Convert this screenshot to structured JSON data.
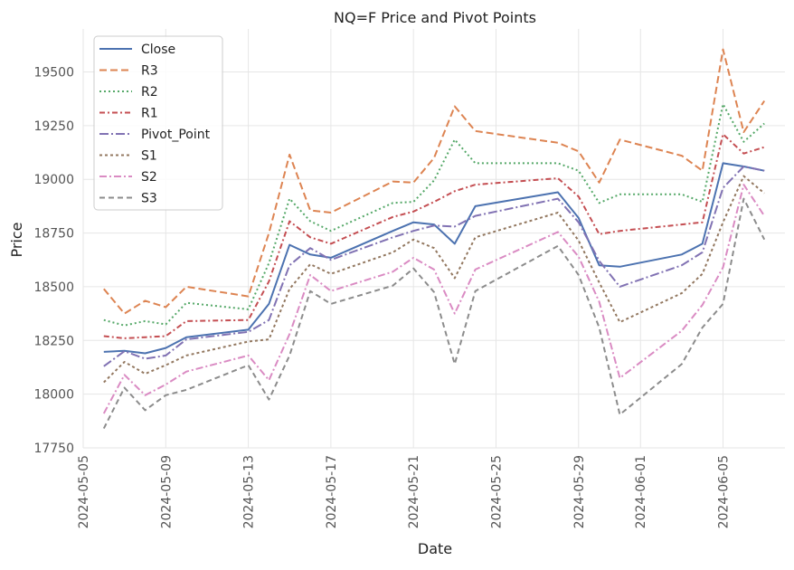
{
  "chart_data": {
    "type": "line",
    "title": "NQ=F Price and Pivot Points",
    "xlabel": "Date",
    "ylabel": "Price",
    "ylim": [
      17750,
      19700
    ],
    "xlim": [
      "2024-05-05",
      "2024-06-08"
    ],
    "y_ticks": [
      17750,
      18000,
      18250,
      18500,
      18750,
      19000,
      19250,
      19500
    ],
    "x_ticks": [
      "2024-05-05",
      "2024-05-09",
      "2024-05-13",
      "2024-05-17",
      "2024-05-21",
      "2024-05-25",
      "2024-05-29",
      "2024-06-01",
      "2024-06-05"
    ],
    "grid": true,
    "legend_position": "top-left",
    "x": [
      "2024-05-06",
      "2024-05-07",
      "2024-05-08",
      "2024-05-09",
      "2024-05-10",
      "2024-05-13",
      "2024-05-14",
      "2024-05-15",
      "2024-05-16",
      "2024-05-17",
      "2024-05-20",
      "2024-05-21",
      "2024-05-22",
      "2024-05-23",
      "2024-05-24",
      "2024-05-28",
      "2024-05-29",
      "2024-05-30",
      "2024-05-31",
      "2024-06-03",
      "2024-06-04",
      "2024-06-05",
      "2024-06-06",
      "2024-06-07"
    ],
    "series": [
      {
        "name": "Close",
        "color": "#4c72b0",
        "dash": "",
        "values": [
          18197,
          18202,
          18190,
          18215,
          18265,
          18300,
          18420,
          18695,
          18650,
          18635,
          18760,
          18800,
          18790,
          18700,
          18875,
          18940,
          18820,
          18600,
          18593,
          18650,
          18700,
          19075,
          19060,
          19040
        ]
      },
      {
        "name": "R3",
        "color": "#dd8452",
        "dash": "8,4",
        "values": [
          18490,
          18375,
          18435,
          18405,
          18500,
          18455,
          18750,
          19115,
          18855,
          18845,
          18990,
          18985,
          19100,
          19340,
          19225,
          19170,
          19130,
          18985,
          19185,
          19110,
          19040,
          19605,
          19220,
          19365
        ]
      },
      {
        "name": "R2",
        "color": "#55a868",
        "dash": "2,3",
        "values": [
          18345,
          18320,
          18340,
          18325,
          18425,
          18395,
          18610,
          18910,
          18805,
          18760,
          18890,
          18895,
          18995,
          19185,
          19075,
          19075,
          19040,
          18890,
          18930,
          18930,
          18895,
          19350,
          19175,
          19260
        ]
      },
      {
        "name": "R1",
        "color": "#c44e52",
        "dash": "6,3,2,3",
        "values": [
          18270,
          18260,
          18265,
          18270,
          18340,
          18345,
          18525,
          18805,
          18730,
          18700,
          18825,
          18850,
          18895,
          18945,
          18975,
          19005,
          18920,
          18745,
          18760,
          18790,
          18800,
          19210,
          19120,
          19150
        ]
      },
      {
        "name": "Pivot_Point",
        "color": "#8172b3",
        "dash": "10,3,2,3",
        "values": [
          18130,
          18200,
          18165,
          18180,
          18255,
          18290,
          18345,
          18600,
          18680,
          18625,
          18730,
          18760,
          18785,
          18780,
          18830,
          18910,
          18800,
          18620,
          18500,
          18600,
          18660,
          18960,
          19060,
          19040
        ]
      },
      {
        "name": "S1",
        "color": "#937860",
        "dash": "3,3",
        "values": [
          18055,
          18150,
          18095,
          18135,
          18180,
          18245,
          18255,
          18490,
          18605,
          18560,
          18660,
          18720,
          18680,
          18540,
          18730,
          18845,
          18715,
          18520,
          18335,
          18470,
          18560,
          18800,
          19015,
          18935
        ]
      },
      {
        "name": "S2",
        "color": "#da8bc3",
        "dash": "8,3,2,3",
        "values": [
          17910,
          18090,
          17995,
          18045,
          18105,
          18180,
          18065,
          18280,
          18555,
          18480,
          18570,
          18635,
          18580,
          18375,
          18580,
          18755,
          18640,
          18430,
          18075,
          18295,
          18415,
          18590,
          18975,
          18830
        ]
      },
      {
        "name": "S3",
        "color": "#8c8c8c",
        "dash": "6,4",
        "values": [
          17840,
          18030,
          17925,
          17995,
          18020,
          18135,
          17975,
          18180,
          18480,
          18420,
          18505,
          18585,
          18475,
          18140,
          18480,
          18690,
          18555,
          18310,
          17905,
          18140,
          18310,
          18420,
          18910,
          18720
        ]
      }
    ]
  }
}
